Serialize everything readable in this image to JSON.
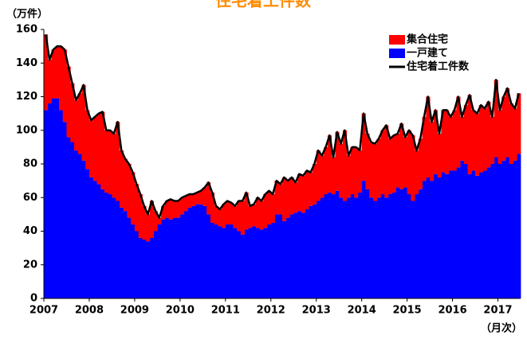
{
  "chart_data": {
    "type": "stacked_area",
    "title": "住宅着工件数",
    "y_axis_label": "（万件）",
    "x_axis_label": "（月次）",
    "categories": [
      "2007",
      null,
      null,
      null,
      null,
      null,
      null,
      null,
      null,
      null,
      null,
      null,
      "2008",
      null,
      null,
      null,
      null,
      null,
      null,
      null,
      null,
      null,
      null,
      null,
      "2009",
      null,
      null,
      null,
      null,
      null,
      null,
      null,
      null,
      null,
      null,
      null,
      "2010",
      null,
      null,
      null,
      null,
      null,
      null,
      null,
      null,
      null,
      null,
      null,
      "2011",
      null,
      null,
      null,
      null,
      null,
      null,
      null,
      null,
      null,
      null,
      null,
      "2012",
      null,
      null,
      null,
      null,
      null,
      null,
      null,
      null,
      null,
      null,
      null,
      "2013",
      null,
      null,
      null,
      null,
      null,
      null,
      null,
      null,
      null,
      null,
      null,
      "2014",
      null,
      null,
      null,
      null,
      null,
      null,
      null,
      null,
      null,
      null,
      null,
      "2015",
      null,
      null,
      null,
      null,
      null,
      null,
      null,
      null,
      null,
      null,
      null,
      "2016",
      null,
      null,
      null,
      null,
      null,
      null,
      null,
      null,
      null,
      null,
      null,
      "2017",
      null,
      null,
      null,
      null,
      null
    ],
    "series": [
      {
        "name": "一戸建て",
        "color": "#0000ff",
        "kind": "area",
        "values": [
          112,
          116,
          119,
          119,
          112,
          105,
          96,
          93,
          88,
          86,
          82,
          77,
          72,
          70,
          68,
          65,
          63,
          62,
          60,
          58,
          54,
          52,
          48,
          44,
          40,
          36,
          35,
          34,
          36,
          40,
          44,
          47,
          48,
          47,
          48,
          48,
          50,
          52,
          54,
          55,
          56,
          56,
          55,
          50,
          45,
          44,
          43,
          42,
          44,
          44,
          42,
          40,
          38,
          41,
          42,
          43,
          42,
          41,
          42,
          44,
          45,
          50,
          50,
          46,
          48,
          50,
          51,
          52,
          51,
          53,
          55,
          56,
          58,
          60,
          62,
          63,
          62,
          64,
          60,
          58,
          60,
          62,
          60,
          63,
          70,
          65,
          60,
          58,
          60,
          62,
          60,
          62,
          63,
          66,
          65,
          66,
          62,
          58,
          62,
          65,
          70,
          72,
          70,
          74,
          72,
          75,
          74,
          76,
          76,
          78,
          82,
          80,
          74,
          76,
          73,
          75,
          76,
          78,
          80,
          84,
          80,
          82,
          84,
          80,
          82,
          86
        ]
      },
      {
        "name": "集合住宅",
        "color": "#ff0000",
        "kind": "area",
        "values": [
          45,
          26,
          29,
          31,
          38,
          43,
          42,
          35,
          30,
          36,
          45,
          35,
          34,
          38,
          42,
          46,
          37,
          38,
          38,
          47,
          34,
          31,
          32,
          31,
          28,
          26,
          20,
          16,
          22,
          12,
          4,
          8,
          10,
          12,
          10,
          10,
          10,
          9,
          8,
          7,
          7,
          8,
          11,
          19,
          18,
          11,
          10,
          14,
          14,
          13,
          13,
          18,
          20,
          22,
          13,
          13,
          18,
          17,
          20,
          20,
          17,
          20,
          18,
          26,
          22,
          22,
          18,
          22,
          22,
          23,
          20,
          24,
          30,
          25,
          28,
          34,
          22,
          35,
          32,
          42,
          25,
          28,
          30,
          25,
          40,
          33,
          33,
          34,
          35,
          38,
          43,
          33,
          34,
          32,
          39,
          30,
          38,
          39,
          26,
          30,
          38,
          48,
          35,
          38,
          26,
          37,
          38,
          32,
          36,
          42,
          26,
          35,
          47,
          36,
          37,
          40,
          37,
          39,
          28,
          46,
          32,
          38,
          41,
          36,
          31,
          36
        ]
      },
      {
        "name": "住宅着工件数",
        "color": "#000000",
        "kind": "line",
        "values": [
          157,
          142,
          148,
          150,
          150,
          148,
          138,
          128,
          118,
          122,
          127,
          112,
          106,
          108,
          110,
          111,
          100,
          100,
          98,
          105,
          88,
          83,
          80,
          75,
          68,
          62,
          55,
          50,
          58,
          52,
          48,
          55,
          58,
          59,
          58,
          58,
          60,
          61,
          62,
          62,
          63,
          64,
          66,
          69,
          63,
          55,
          53,
          56,
          58,
          57,
          55,
          58,
          58,
          63,
          55,
          56,
          60,
          58,
          62,
          64,
          62,
          70,
          68,
          72,
          70,
          72,
          69,
          74,
          73,
          76,
          75,
          80,
          88,
          85,
          90,
          97,
          84,
          99,
          92,
          100,
          85,
          90,
          90,
          88,
          110,
          98,
          93,
          92,
          95,
          100,
          103,
          95,
          97,
          98,
          104,
          96,
          100,
          97,
          88,
          95,
          108,
          120,
          105,
          112,
          98,
          112,
          112,
          108,
          112,
          120,
          108,
          115,
          121,
          112,
          110,
          115,
          113,
          117,
          108,
          130,
          112,
          120,
          125,
          116,
          113,
          122
        ]
      }
    ],
    "ylim": [
      0,
      160
    ],
    "yticks": [
      0,
      20,
      40,
      60,
      80,
      100,
      120,
      140,
      160
    ],
    "grid": false,
    "legend": "top-right"
  }
}
